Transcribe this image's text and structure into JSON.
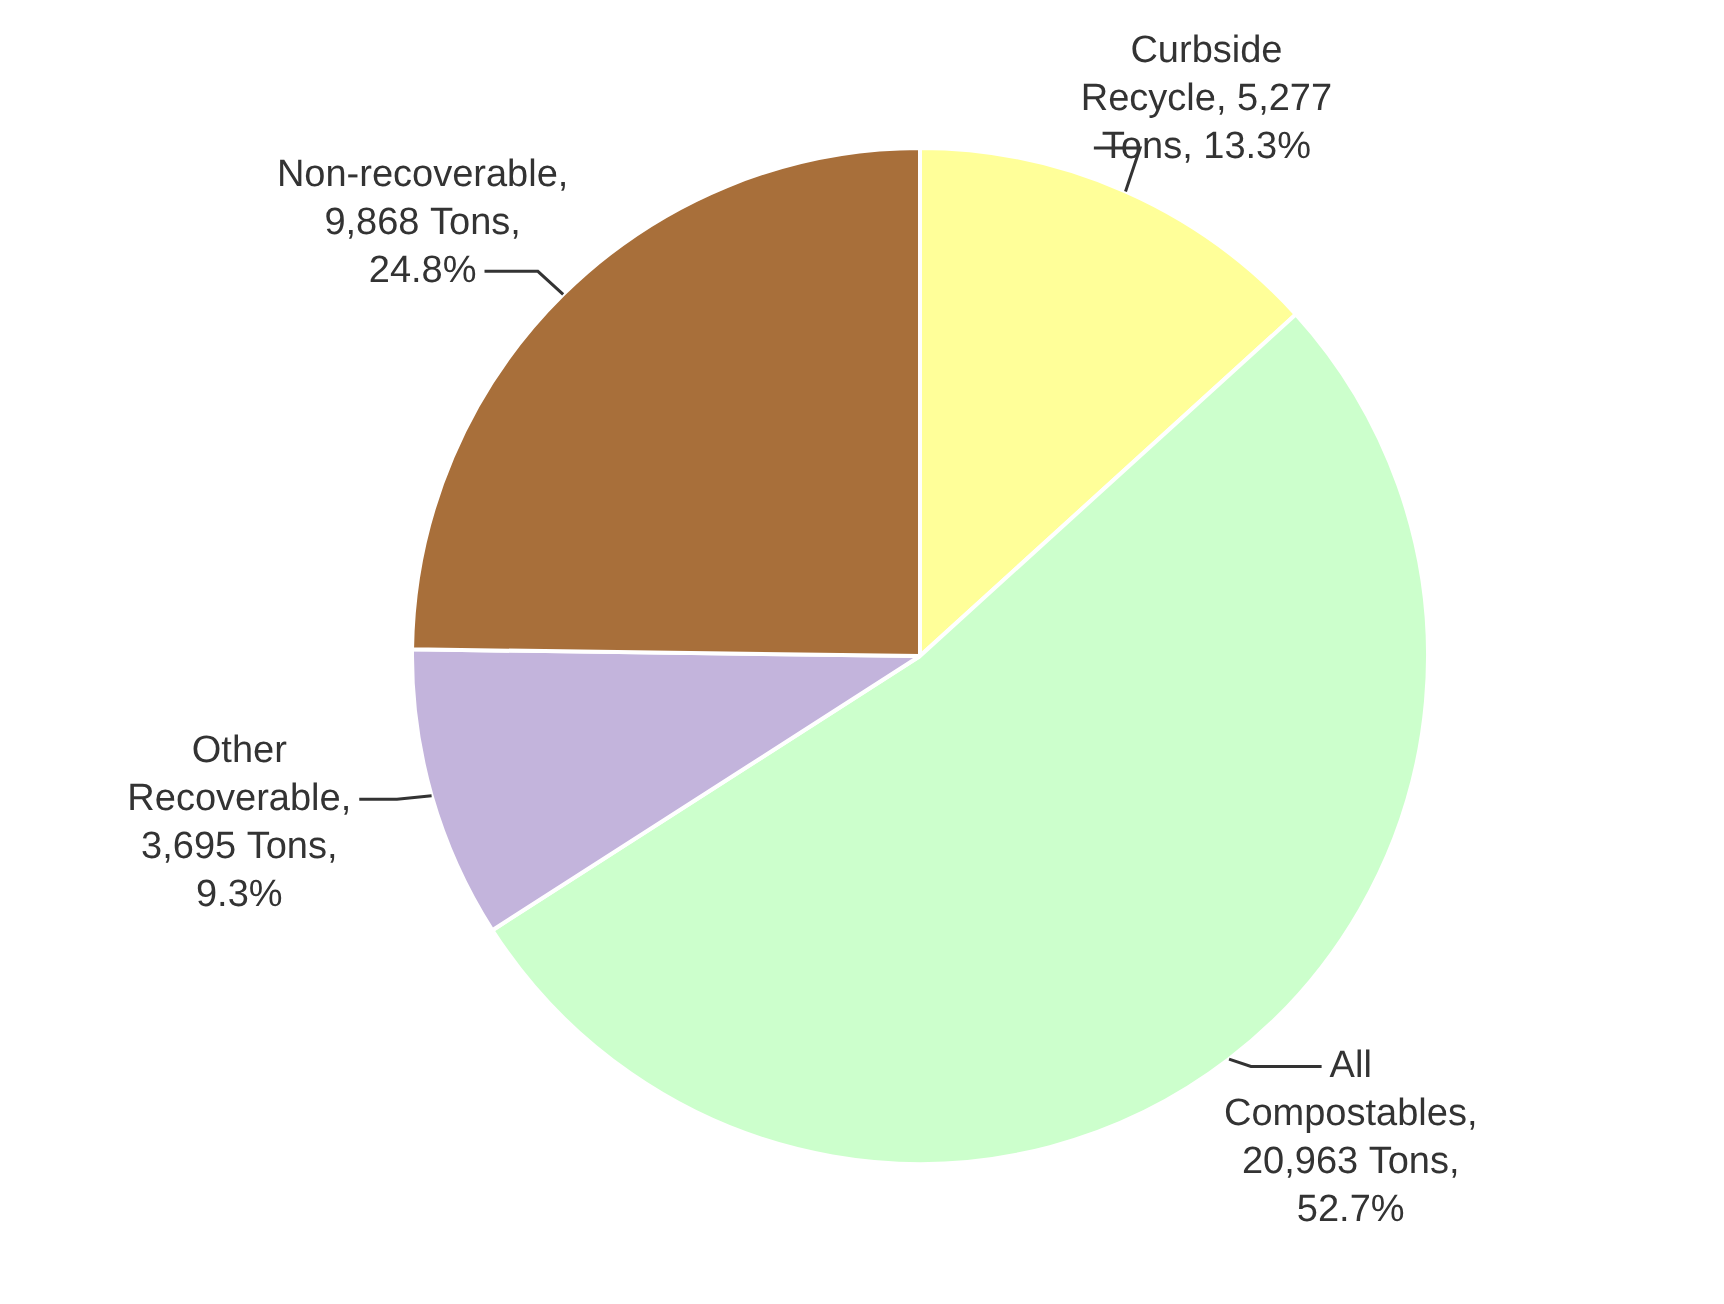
{
  "chart_data": {
    "type": "pie",
    "categories": [
      "Curbside Recycle",
      "All Compostables",
      "Other Recoverable",
      "Non-recoverable"
    ],
    "values": [
      5277,
      20963,
      3695,
      9868
    ],
    "value_labels": [
      ", 5,277 Tons, 13.3%",
      ", 20,963 Tons, 52.7%",
      ", 3,695 Tons, 9.3%",
      ", 9,868 Tons, 24.8%"
    ],
    "colors": [
      "#ffff99",
      "#ccffcc",
      "#c3b4dc",
      "#a86f3a"
    ],
    "legend": false
  }
}
